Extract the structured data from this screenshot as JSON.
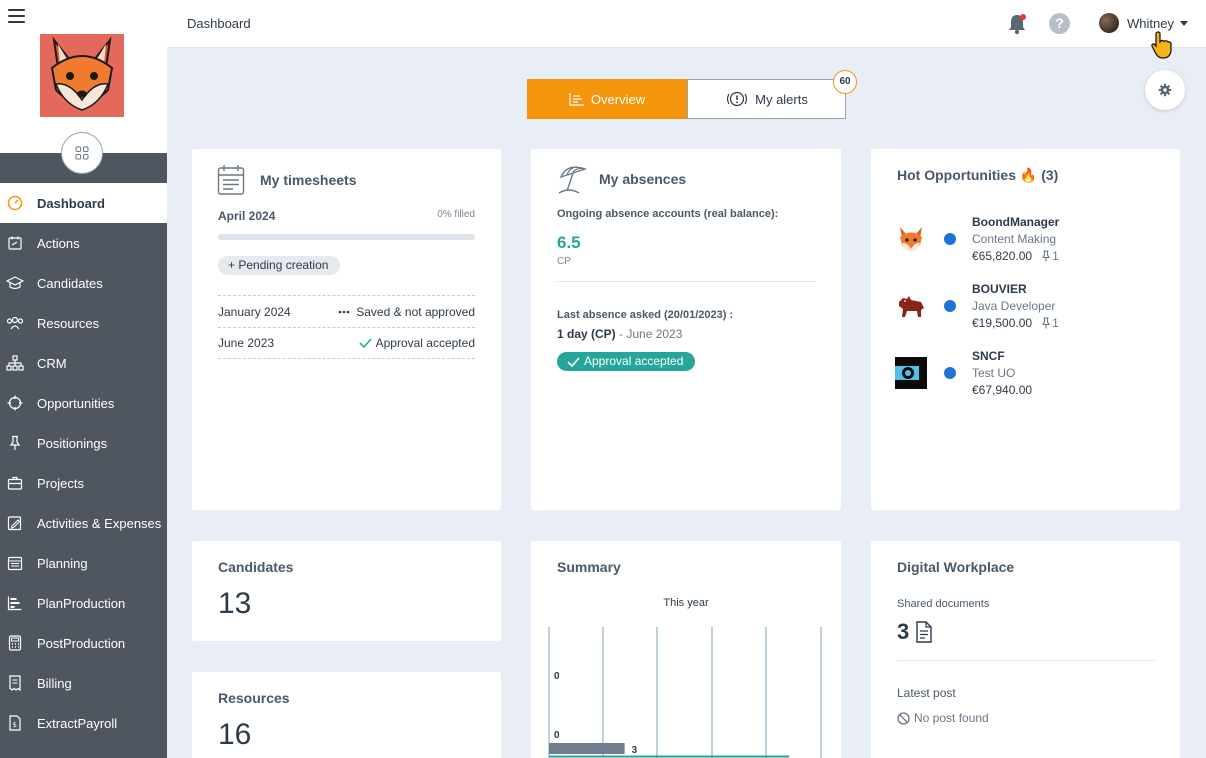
{
  "sidebar": {
    "items": [
      {
        "label": "Dashboard",
        "icon": "dashboard-icon",
        "active": true
      },
      {
        "label": "Actions",
        "icon": "actions-icon"
      },
      {
        "label": "Candidates",
        "icon": "graduation-cap-icon"
      },
      {
        "label": "Resources",
        "icon": "people-icon"
      },
      {
        "label": "CRM",
        "icon": "sitemap-icon"
      },
      {
        "label": "Opportunities",
        "icon": "crosshair-icon"
      },
      {
        "label": "Positionings",
        "icon": "pin-icon"
      },
      {
        "label": "Projects",
        "icon": "briefcase-icon"
      },
      {
        "label": "Activities & Expenses",
        "icon": "edit-icon"
      },
      {
        "label": "Planning",
        "icon": "calendar-icon"
      },
      {
        "label": "PlanProduction",
        "icon": "chart-bars-icon"
      },
      {
        "label": "PostProduction",
        "icon": "calculator-icon"
      },
      {
        "label": "Billing",
        "icon": "invoice-icon"
      },
      {
        "label": "ExtractPayroll",
        "icon": "payroll-icon"
      }
    ]
  },
  "header": {
    "title": "Dashboard",
    "user_name": "Whitney"
  },
  "tabs": {
    "overview": "Overview",
    "alerts": "My alerts",
    "alerts_count": "60",
    "accent": "#f5950b"
  },
  "timesheets": {
    "title": "My timesheets",
    "month": "April 2024",
    "filled_label": "0% filled",
    "filled_fraction": 0,
    "pending_label": "Pending creation",
    "rows": [
      {
        "month": "January 2024",
        "status": "Saved & not approved"
      },
      {
        "month": "June 2023",
        "status": "Approval accepted"
      }
    ]
  },
  "absences": {
    "title": "My absences",
    "ongoing_label": "Ongoing absence accounts (real balance):",
    "balance": "6.5",
    "unit": "CP",
    "last_label": "Last absence asked (20/01/2023) :",
    "last_days": "1 day (CP)",
    "last_month": " - June 2023",
    "status": "Approval accepted",
    "status_color": "#26a69a"
  },
  "hot_opportunities": {
    "title": "Hot Opportunities 🔥 (3)",
    "items": [
      {
        "company": "BoondManager",
        "title": "Content Making",
        "amount": "€65,820.00",
        "positionings": "1"
      },
      {
        "company": "BOUVIER",
        "title": "Java Developer",
        "amount": "€19,500.00",
        "positionings": "1"
      },
      {
        "company": "SNCF",
        "title": "Test UO",
        "amount": "€67,940.00",
        "positionings": ""
      }
    ]
  },
  "candidates": {
    "title": "Candidates",
    "value": "13"
  },
  "resources": {
    "title": "Resources",
    "value": "16"
  },
  "summary": {
    "title": "Summary",
    "subtitle": "This year"
  },
  "chart_data": {
    "type": "bar",
    "title": "This year",
    "orientation": "horizontal",
    "data_labels": [
      "0",
      "0",
      "3"
    ],
    "values": [
      0,
      0,
      3
    ],
    "grid": true
  },
  "digital_workplace": {
    "title": "Digital Workplace",
    "shared_label": "Shared documents",
    "shared_value": "3",
    "latest_label": "Latest post",
    "no_post": "No post found"
  }
}
